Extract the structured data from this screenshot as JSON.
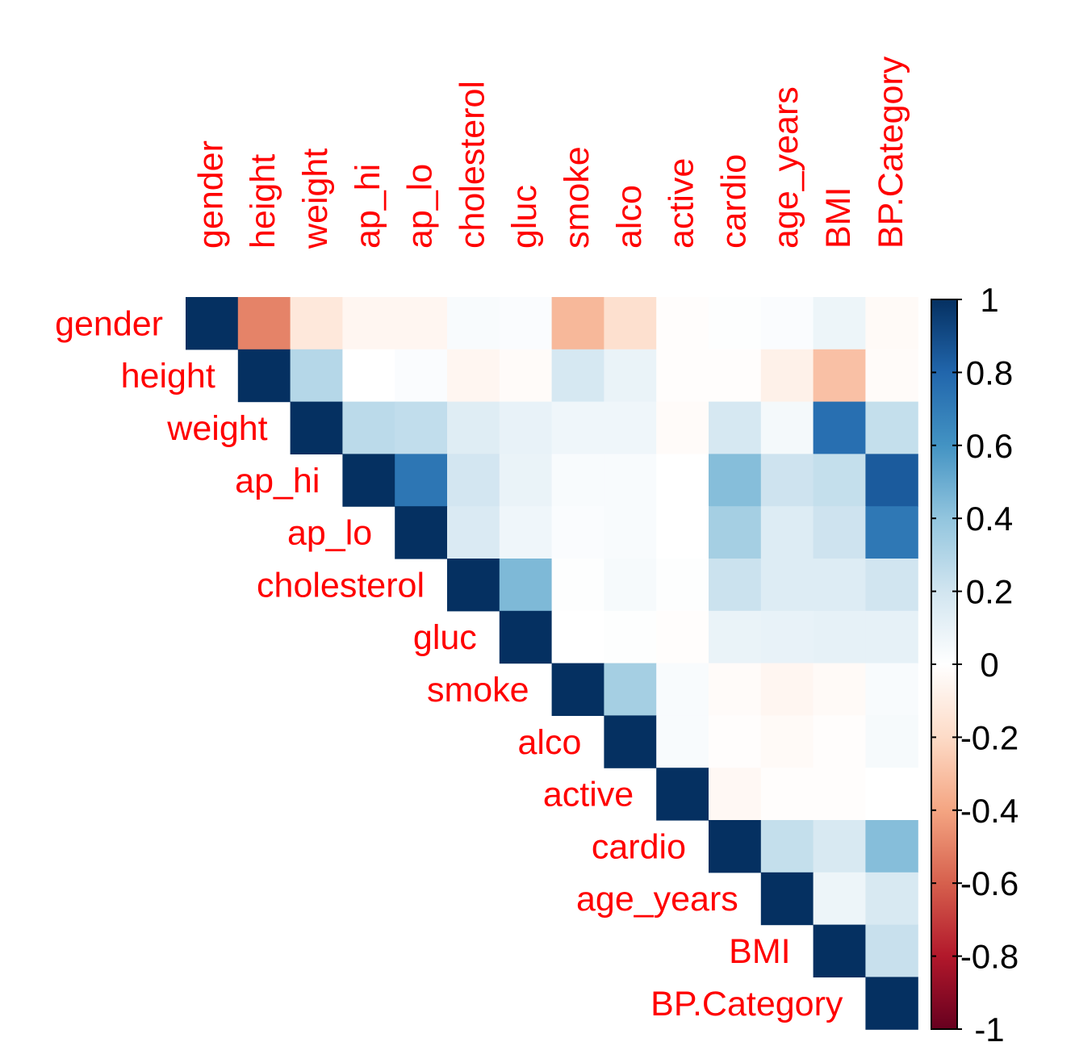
{
  "chart_data": {
    "type": "heatmap",
    "title": "",
    "xlabel": "",
    "ylabel": "",
    "variables": [
      "gender",
      "height",
      "weight",
      "ap_hi",
      "ap_lo",
      "cholesterol",
      "gluc",
      "smoke",
      "alco",
      "active",
      "cardio",
      "age_years",
      "BMI",
      "BP.Category"
    ],
    "layout": "upper-triangle",
    "label_color": "#ff0000",
    "matrix": [
      [
        1.0,
        -0.5,
        -0.13,
        -0.05,
        -0.05,
        0.03,
        0.02,
        -0.33,
        -0.17,
        -0.01,
        0.01,
        0.02,
        0.08,
        -0.03
      ],
      [
        null,
        1.0,
        0.29,
        0.0,
        0.02,
        -0.05,
        -0.02,
        0.18,
        0.09,
        -0.01,
        -0.01,
        -0.08,
        -0.3,
        -0.02
      ],
      [
        null,
        null,
        1.0,
        0.27,
        0.25,
        0.14,
        0.1,
        0.07,
        0.07,
        -0.02,
        0.18,
        0.05,
        0.76,
        0.24
      ],
      [
        null,
        null,
        null,
        1.0,
        0.73,
        0.19,
        0.09,
        0.03,
        0.03,
        0.0,
        0.43,
        0.21,
        0.24,
        0.84
      ],
      [
        null,
        null,
        null,
        null,
        1.0,
        0.16,
        0.07,
        0.02,
        0.03,
        0.0,
        0.34,
        0.15,
        0.21,
        0.72
      ],
      [
        null,
        null,
        null,
        null,
        null,
        1.0,
        0.45,
        0.01,
        0.04,
        0.01,
        0.22,
        0.15,
        0.15,
        0.2
      ],
      [
        null,
        null,
        null,
        null,
        null,
        null,
        1.0,
        0.0,
        0.01,
        -0.01,
        0.09,
        0.1,
        0.11,
        0.11
      ],
      [
        null,
        null,
        null,
        null,
        null,
        null,
        null,
        1.0,
        0.34,
        0.03,
        -0.02,
        -0.05,
        -0.03,
        0.03
      ],
      [
        null,
        null,
        null,
        null,
        null,
        null,
        null,
        null,
        1.0,
        0.03,
        -0.01,
        -0.03,
        -0.01,
        0.04
      ],
      [
        null,
        null,
        null,
        null,
        null,
        null,
        null,
        null,
        null,
        1.0,
        -0.04,
        -0.01,
        -0.01,
        0.0
      ],
      [
        null,
        null,
        null,
        null,
        null,
        null,
        null,
        null,
        null,
        null,
        1.0,
        0.24,
        0.17,
        0.43
      ],
      [
        null,
        null,
        null,
        null,
        null,
        null,
        null,
        null,
        null,
        null,
        null,
        1.0,
        0.08,
        0.17
      ],
      [
        null,
        null,
        null,
        null,
        null,
        null,
        null,
        null,
        null,
        null,
        null,
        null,
        1.0,
        0.23
      ],
      [
        null,
        null,
        null,
        null,
        null,
        null,
        null,
        null,
        null,
        null,
        null,
        null,
        null,
        1.0
      ]
    ],
    "colorbar": {
      "range": [
        -1,
        1
      ],
      "ticks": [
        "1",
        "0.8",
        "0.6",
        "0.4",
        "0.2",
        "0",
        "-0.2",
        "-0.4",
        "-0.6",
        "-0.8",
        "-1"
      ],
      "tick_values": [
        1,
        0.8,
        0.6,
        0.4,
        0.2,
        0,
        -0.2,
        -0.4,
        -0.6,
        -0.8,
        -1
      ],
      "palette": [
        "#67001f",
        "#b2182b",
        "#d6604d",
        "#f4a582",
        "#fddbc7",
        "#ffffff",
        "#d1e5f0",
        "#92c5de",
        "#4393c3",
        "#2166ac",
        "#053061"
      ]
    }
  }
}
